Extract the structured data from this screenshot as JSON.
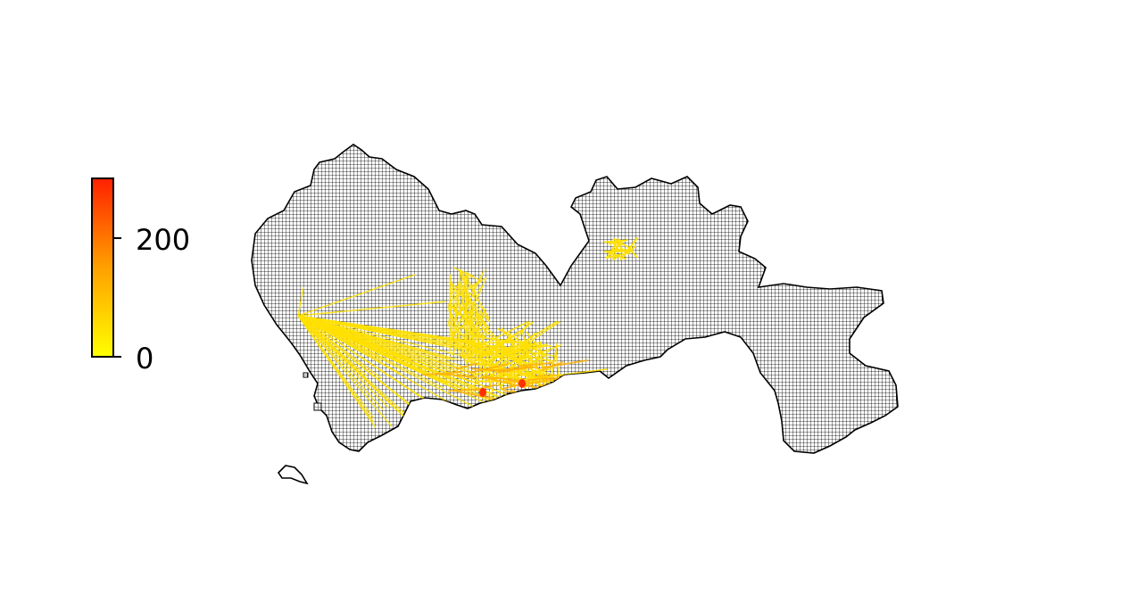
{
  "colorbar": {
    "ticks": [
      {
        "value": 0,
        "label": "0"
      },
      {
        "value": 200,
        "label": "200"
      }
    ],
    "max": 300,
    "colors": [
      "#ffff00",
      "#ffa000",
      "#ff2000"
    ]
  },
  "map": {
    "land_color": "#8c8c8c",
    "grid_line_color": "#000000",
    "boundary_color": "#000000",
    "flow_base_color": "#ffe000",
    "flow_high_color": "#ff3000"
  }
}
